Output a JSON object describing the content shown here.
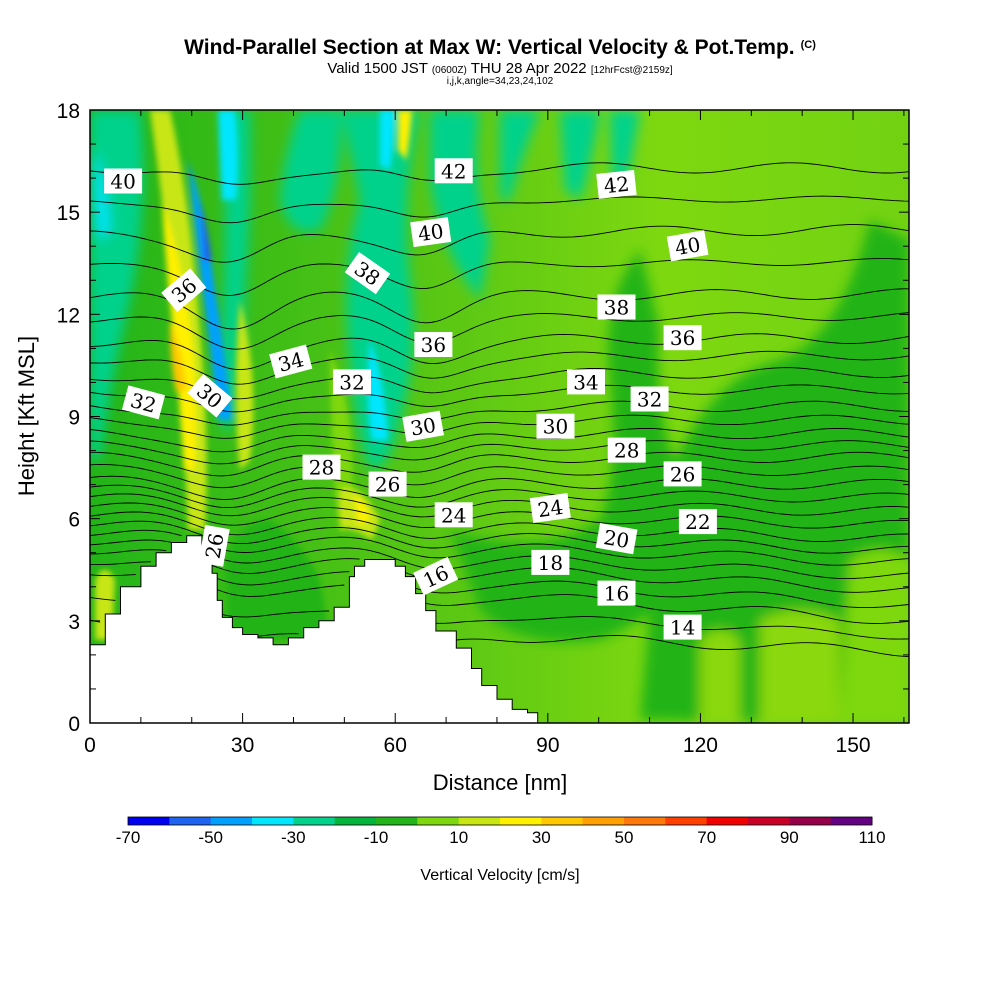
{
  "header": {
    "title": "Wind-Parallel Section at Max W: Vertical Velocity & Pot.Temp.",
    "copyright": "(C)",
    "valid_main": "Valid 1500 JST",
    "valid_utc": "(0600Z)",
    "valid_date": "THU 28 Apr 2022",
    "forecast": "[12hrFcst@2159z]",
    "subtitle": "i,j,k,angle=34,23,24,102"
  },
  "chart_data": {
    "type": "heatmap",
    "xlabel": "Distance [nm]",
    "ylabel": "Height [Kft MSL]",
    "xlim": [
      0,
      161
    ],
    "ylim": [
      0,
      18
    ],
    "xticks": [
      0,
      30,
      60,
      90,
      120,
      150
    ],
    "yticks": [
      0,
      3,
      6,
      9,
      12,
      15,
      18
    ],
    "colorbar": {
      "title": "Vertical Velocity [cm/s]",
      "tick_labels": [
        "-70",
        "-50",
        "-30",
        "-10",
        "10",
        "30",
        "50",
        "70",
        "90",
        "110"
      ],
      "colors": [
        "#0000f0",
        "#1e64f0",
        "#00a0ff",
        "#00e6ff",
        "#00d28c",
        "#00b43c",
        "#22b418",
        "#7ed810",
        "#c8e612",
        "#fff000",
        "#ffc800",
        "#ffa000",
        "#ff780a",
        "#ff4000",
        "#f00000",
        "#c80028",
        "#96004b",
        "#640082"
      ]
    },
    "terrain": [
      [
        0,
        2.3
      ],
      [
        3,
        2.3
      ],
      [
        3,
        3.2
      ],
      [
        6,
        3.2
      ],
      [
        6,
        4.0
      ],
      [
        10,
        4.0
      ],
      [
        10,
        4.6
      ],
      [
        13,
        4.6
      ],
      [
        13,
        5.0
      ],
      [
        16,
        5.0
      ],
      [
        16,
        5.3
      ],
      [
        19,
        5.3
      ],
      [
        19,
        5.5
      ],
      [
        22,
        5.5
      ],
      [
        22,
        5.2
      ],
      [
        24,
        5.2
      ],
      [
        24,
        4.4
      ],
      [
        25,
        4.4
      ],
      [
        25,
        3.6
      ],
      [
        26,
        3.6
      ],
      [
        26,
        3.1
      ],
      [
        28,
        3.1
      ],
      [
        28,
        2.8
      ],
      [
        30,
        2.8
      ],
      [
        30,
        2.6
      ],
      [
        33,
        2.6
      ],
      [
        33,
        2.5
      ],
      [
        36,
        2.5
      ],
      [
        36,
        2.3
      ],
      [
        39,
        2.3
      ],
      [
        39,
        2.5
      ],
      [
        42,
        2.5
      ],
      [
        42,
        2.8
      ],
      [
        45,
        2.8
      ],
      [
        45,
        3.0
      ],
      [
        48,
        3.0
      ],
      [
        48,
        3.4
      ],
      [
        51,
        3.4
      ],
      [
        51,
        4.3
      ],
      [
        52,
        4.3
      ],
      [
        52,
        4.6
      ],
      [
        54,
        4.6
      ],
      [
        54,
        4.8
      ],
      [
        60,
        4.8
      ],
      [
        60,
        4.6
      ],
      [
        62,
        4.6
      ],
      [
        62,
        4.3
      ],
      [
        64,
        4.3
      ],
      [
        64,
        3.8
      ],
      [
        66,
        3.8
      ],
      [
        66,
        3.3
      ],
      [
        68,
        3.3
      ],
      [
        68,
        2.7
      ],
      [
        72,
        2.7
      ],
      [
        72,
        2.2
      ],
      [
        75,
        2.2
      ],
      [
        75,
        1.6
      ],
      [
        77,
        1.6
      ],
      [
        77,
        1.1
      ],
      [
        80,
        1.1
      ],
      [
        80,
        0.7
      ],
      [
        83,
        0.7
      ],
      [
        83,
        0.4
      ],
      [
        86,
        0.4
      ],
      [
        86,
        0.3
      ],
      [
        88,
        0.3
      ],
      [
        88,
        0
      ]
    ],
    "theta_contours": [
      {
        "label": "14",
        "left": 3.0,
        "right": 2.1,
        "dip": 0.5
      },
      {
        "label": "16",
        "left": 4.5,
        "right": 3.0,
        "dip": 0.5
      },
      {
        "label": "18",
        "left": 5.1,
        "right": 3.9,
        "dip": 0.4
      },
      {
        "label": "20",
        "left": 5.6,
        "right": 4.7,
        "dip": 0.3
      },
      {
        "label": "22",
        "left": 6.1,
        "right": 5.4,
        "dip": 0.3
      },
      {
        "label": "24",
        "left": 6.6,
        "right": 6.2,
        "dip": 0.3
      },
      {
        "label": "26",
        "left": 7.1,
        "right": 7.0,
        "dip": 0.4
      },
      {
        "label": "28",
        "left": 7.8,
        "right": 7.8,
        "dip": 0.5
      },
      {
        "label": "30",
        "left": 8.5,
        "right": 8.5,
        "dip": 0.6
      },
      {
        "label": "32",
        "left": 9.3,
        "right": 9.3,
        "dip": 0.7
      },
      {
        "label": "34",
        "left": 10.2,
        "right": 10.3,
        "dip": 0.8
      },
      {
        "label": "36",
        "left": 11.2,
        "right": 11.3,
        "dip": 0.8
      },
      {
        "label": "38",
        "left": 12.5,
        "right": 12.6,
        "dip": 0.8
      },
      {
        "label": "40",
        "left": 14.3,
        "right": 14.5,
        "dip": 0.8
      },
      {
        "label": "42",
        "left": 16.3,
        "right": 16.3,
        "dip": 0.6
      }
    ],
    "contour_labels": [
      {
        "text": "40",
        "x": 6.5,
        "y": 15.9,
        "angle": 0
      },
      {
        "text": "42",
        "x": 71.5,
        "y": 16.2,
        "angle": 0
      },
      {
        "text": "42",
        "x": 103.5,
        "y": 15.8,
        "angle": -6
      },
      {
        "text": "40",
        "x": 67,
        "y": 14.4,
        "angle": -8
      },
      {
        "text": "40",
        "x": 117.5,
        "y": 14.0,
        "angle": -10
      },
      {
        "text": "36",
        "x": 18.5,
        "y": 12.7,
        "angle": -40
      },
      {
        "text": "38",
        "x": 54.5,
        "y": 13.2,
        "angle": 35
      },
      {
        "text": "38",
        "x": 103.5,
        "y": 12.2,
        "angle": 0
      },
      {
        "text": "36",
        "x": 67.5,
        "y": 11.1,
        "angle": 0
      },
      {
        "text": "36",
        "x": 116.5,
        "y": 11.3,
        "angle": 0
      },
      {
        "text": "34",
        "x": 39.5,
        "y": 10.6,
        "angle": -15
      },
      {
        "text": "32",
        "x": 51.5,
        "y": 10.0,
        "angle": 0
      },
      {
        "text": "34",
        "x": 97.5,
        "y": 10.0,
        "angle": 0
      },
      {
        "text": "30",
        "x": 23.5,
        "y": 9.6,
        "angle": 40
      },
      {
        "text": "32",
        "x": 10.5,
        "y": 9.4,
        "angle": 15
      },
      {
        "text": "32",
        "x": 110,
        "y": 9.5,
        "angle": 0
      },
      {
        "text": "30",
        "x": 65.5,
        "y": 8.7,
        "angle": -10
      },
      {
        "text": "30",
        "x": 91.5,
        "y": 8.7,
        "angle": 0
      },
      {
        "text": "28",
        "x": 105.5,
        "y": 8.0,
        "angle": 0
      },
      {
        "text": "26",
        "x": 116.5,
        "y": 7.3,
        "angle": 0
      },
      {
        "text": "28",
        "x": 45.5,
        "y": 7.5,
        "angle": 0
      },
      {
        "text": "26",
        "x": 58.5,
        "y": 7.0,
        "angle": 0
      },
      {
        "text": "24",
        "x": 71.5,
        "y": 6.1,
        "angle": 0
      },
      {
        "text": "24",
        "x": 90.5,
        "y": 6.3,
        "angle": -8
      },
      {
        "text": "22",
        "x": 119.5,
        "y": 5.9,
        "angle": 0
      },
      {
        "text": "20",
        "x": 103.5,
        "y": 5.4,
        "angle": 10
      },
      {
        "text": "26",
        "x": 24.5,
        "y": 5.2,
        "angle": -80
      },
      {
        "text": "18",
        "x": 90.5,
        "y": 4.7,
        "angle": 0
      },
      {
        "text": "16",
        "x": 68,
        "y": 4.3,
        "angle": -25
      },
      {
        "text": "16",
        "x": 103.5,
        "y": 3.8,
        "angle": 0
      },
      {
        "text": "14",
        "x": 116.5,
        "y": 2.8,
        "angle": 0
      }
    ]
  }
}
